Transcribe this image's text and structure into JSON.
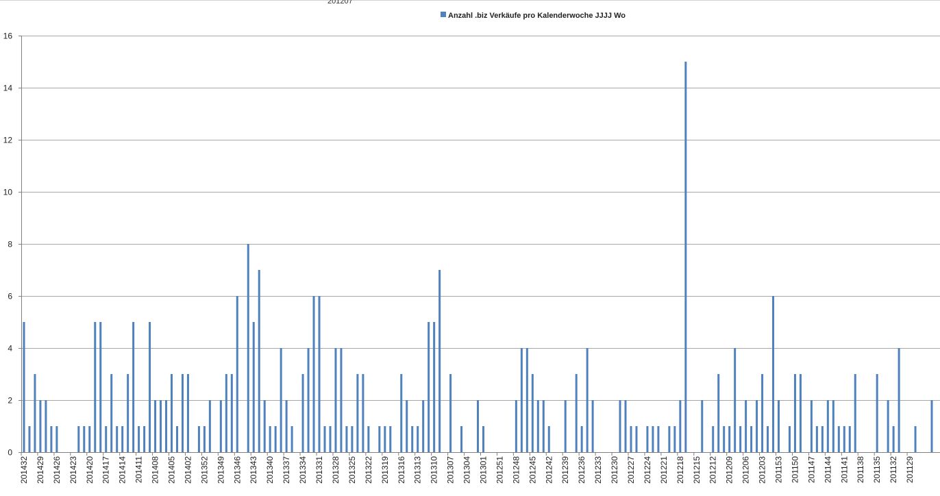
{
  "chart_data": {
    "type": "bar",
    "legend_position": "top",
    "grid": true,
    "colors": {
      "bar": "#4F81BD",
      "grid": "#A6A6A6",
      "axis": "#7F7F7F"
    },
    "ylim": [
      0,
      16
    ],
    "yticks": [
      0,
      2,
      4,
      6,
      8,
      10,
      12,
      14,
      16
    ],
    "series": [
      {
        "name": "Anzahl .biz Verkäufe pro Kalenderwoche JJJJ Wo",
        "values": [
          5,
          1,
          3,
          2,
          2,
          1,
          1,
          0,
          0,
          0,
          1,
          1,
          1,
          5,
          5,
          1,
          3,
          1,
          1,
          3,
          5,
          1,
          1,
          5,
          2,
          2,
          2,
          3,
          1,
          3,
          3,
          0,
          1,
          1,
          2,
          0,
          2,
          3,
          3,
          6,
          0,
          8,
          5,
          7,
          2,
          1,
          1,
          4,
          2,
          1,
          0,
          3,
          4,
          6,
          6,
          1,
          1,
          4,
          4,
          1,
          1,
          3,
          3,
          1,
          0,
          1,
          1,
          1,
          0,
          3,
          2,
          1,
          1,
          2,
          5,
          5,
          7,
          0,
          3,
          0,
          1,
          0,
          0,
          2,
          1,
          0,
          0,
          0,
          0,
          0,
          2,
          4,
          4,
          3,
          2,
          2,
          1,
          0,
          0,
          2,
          0,
          3,
          1,
          4,
          2,
          0,
          0,
          0,
          0,
          2,
          2,
          1,
          1,
          0,
          1,
          1,
          1,
          0,
          1,
          1,
          2,
          15,
          0,
          0,
          2,
          0,
          1,
          3,
          1,
          1,
          4,
          1,
          2,
          1,
          2,
          3,
          1,
          6,
          2,
          0,
          1,
          3,
          3,
          0,
          2,
          1,
          1,
          2,
          2,
          1,
          1,
          1,
          3,
          0,
          0,
          0,
          3,
          0,
          2,
          1,
          4,
          0,
          0,
          1,
          0,
          0,
          2
        ]
      }
    ],
    "category_labels": [
      "201432",
      "201429",
      "201426",
      "201423",
      "201420",
      "201417",
      "201414",
      "201411",
      "201408",
      "201405",
      "201402",
      "201352",
      "201349",
      "201346",
      "201343",
      "201340",
      "201337",
      "201334",
      "201331",
      "201328",
      "201325",
      "201322",
      "201319",
      "201316",
      "201313",
      "201310",
      "201307",
      "201304",
      "201301",
      "201251",
      "201248",
      "201245",
      "201242",
      "201239",
      "201236",
      "201233",
      "201230",
      "201227",
      "201224",
      "201221",
      "201218",
      "201215",
      "201212",
      "201209",
      "201206",
      "201203",
      "201153",
      "201150",
      "201147",
      "201144",
      "201141",
      "201138",
      "201135",
      "201132",
      "201129"
    ],
    "label_every": 3,
    "top_cut_text": "201207"
  }
}
